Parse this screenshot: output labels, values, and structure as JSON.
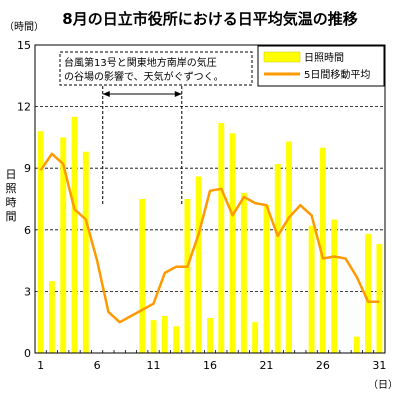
{
  "chart_data": {
    "type": "bar+line",
    "title": "8月の日立市役所における日平均気温の推移",
    "y_unit": "（時間）",
    "ylabel": "日照時間",
    "x_unit": "（日）",
    "ylim": [
      0,
      15
    ],
    "yticks": [
      0,
      3,
      6,
      9,
      12,
      15
    ],
    "xticks": [
      1,
      6,
      11,
      16,
      21,
      26,
      31
    ],
    "x": [
      1,
      2,
      3,
      4,
      5,
      6,
      7,
      8,
      9,
      10,
      11,
      12,
      13,
      14,
      15,
      16,
      17,
      18,
      19,
      20,
      21,
      22,
      23,
      24,
      25,
      26,
      27,
      28,
      29,
      30,
      31
    ],
    "series": [
      {
        "name": "日照時間",
        "type": "bar",
        "color": "#ffff00",
        "values": [
          10.8,
          3.5,
          10.5,
          11.5,
          9.8,
          0,
          0,
          0,
          0,
          7.5,
          1.6,
          1.8,
          1.3,
          7.5,
          8.6,
          1.7,
          11.2,
          10.7,
          7.8,
          1.5,
          7.2,
          9.2,
          10.3,
          0,
          6.2,
          10.0,
          6.5,
          0,
          0.8,
          5.8,
          5.3
        ]
      },
      {
        "name": "5日間移動平均",
        "type": "line",
        "color": "#ff9900",
        "values": [
          8.9,
          9.7,
          9.2,
          7.0,
          6.5,
          4.5,
          2.0,
          1.5,
          1.8,
          2.1,
          2.4,
          3.9,
          4.2,
          4.2,
          5.8,
          7.9,
          8.0,
          6.7,
          7.6,
          7.3,
          7.2,
          5.7,
          6.6,
          7.2,
          6.7,
          4.6,
          4.7,
          4.6,
          3.7,
          2.5,
          2.5
        ]
      }
    ],
    "annotation": {
      "lines": [
        "台風第13号と関東地方南岸の気圧",
        "の谷場の影響で、天気がぐずつく。"
      ],
      "range_x": [
        6,
        13
      ]
    },
    "grid": "dashed horizontal",
    "legend_placement": "top-right"
  }
}
